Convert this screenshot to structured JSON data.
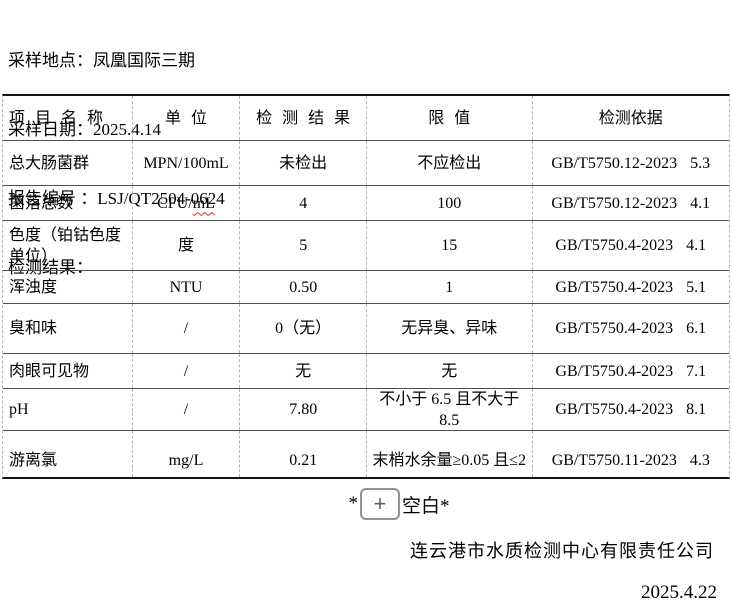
{
  "document": {
    "info_lines": [
      "采样地点：凤凰国际三期",
      "采样日期：2025.4.14",
      "报告编号 ：LSJ/QT2504-0624",
      "检测结果："
    ],
    "table": {
      "headers": [
        "项 目 名 称",
        "单  位",
        "检 测 结 果",
        "限  值",
        "检测依据"
      ],
      "rows": [
        {
          "item": "总大肠菌群",
          "unit": "MPN/100mL",
          "result": "未检出",
          "limit": "不应检出",
          "basis": "GB/T5750.12-2023",
          "clause": "5.3"
        },
        {
          "item": "菌落总数",
          "unit": "CFU/mL",
          "unit_squiggle": "mL",
          "result": "4",
          "limit": "100",
          "basis": "GB/T5750.12-2023",
          "clause": "4.1"
        },
        {
          "item": "色度（铂钴色度单位）",
          "unit": "度",
          "result": "5",
          "limit": "15",
          "basis": "GB/T5750.4-2023",
          "clause": "4.1"
        },
        {
          "item": "浑浊度",
          "unit": "NTU",
          "result": "0.50",
          "limit": "1",
          "basis": "GB/T5750.4-2023",
          "clause": "5.1"
        },
        {
          "item": "臭和味",
          "unit": "/",
          "result": "0（无）",
          "limit": "无异臭、异味",
          "basis": "GB/T5750.4-2023",
          "clause": "6.1"
        },
        {
          "item": "肉眼可见物",
          "unit": "/",
          "result": "无",
          "limit": "无",
          "basis": "GB/T5750.4-2023",
          "clause": "7.1"
        },
        {
          "item": "pH",
          "unit": "/",
          "result": "7.80",
          "limit": "不小于 6.5 且不大于 8.5",
          "basis": "GB/T5750.4-2023",
          "clause": "8.1"
        },
        {
          "item": "游离氯",
          "unit": "mg/L",
          "result": "0.21",
          "limit": "末梢水余量≥0.05 且≤2",
          "basis": "GB/T5750.11-2023",
          "clause": "4.3"
        }
      ]
    },
    "blank_marker": {
      "prefix": "*",
      "plus_label": "+",
      "suffix": "空白*"
    },
    "company": "连云港市水质检测中心有限责任公司",
    "report_date": "2025.4.22",
    "colors": {
      "text": "#000000",
      "outer_border": "#161616",
      "row_border": "#4f4f4f",
      "grid": "#b5b5b5",
      "squiggle": "#d93025",
      "plus_border": "#929292",
      "plus": "#5f5f5f"
    }
  }
}
